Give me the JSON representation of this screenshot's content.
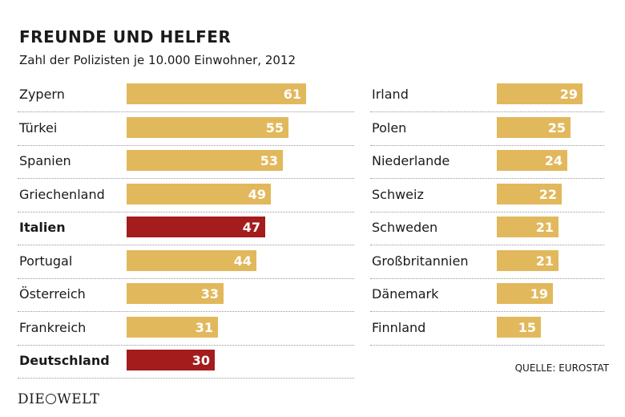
{
  "chart_data": {
    "type": "bar",
    "title": "FREUNDE UND HELFER",
    "subtitle": "Zahl der Polizisten je 10.000 Einwohner, 2012",
    "categories": [
      "Zypern",
      "Türkei",
      "Spanien",
      "Griechenland",
      "Italien",
      "Portugal",
      "Österreich",
      "Frankreich",
      "Deutschland",
      "Irland",
      "Polen",
      "Niederlande",
      "Schweiz",
      "Schweden",
      "Großbritannien",
      "Dänemark",
      "Finnland"
    ],
    "values": [
      61,
      55,
      53,
      49,
      47,
      44,
      33,
      31,
      30,
      29,
      25,
      24,
      22,
      21,
      21,
      19,
      15
    ],
    "highlighted": [
      "Italien",
      "Deutschland"
    ],
    "colors": {
      "default": "#e2b85c",
      "highlight": "#a51c1c"
    },
    "source": "QUELLE: EUROSTAT"
  },
  "brand": {
    "logo_text_left": "DIE",
    "logo_text_right": "WELT"
  }
}
